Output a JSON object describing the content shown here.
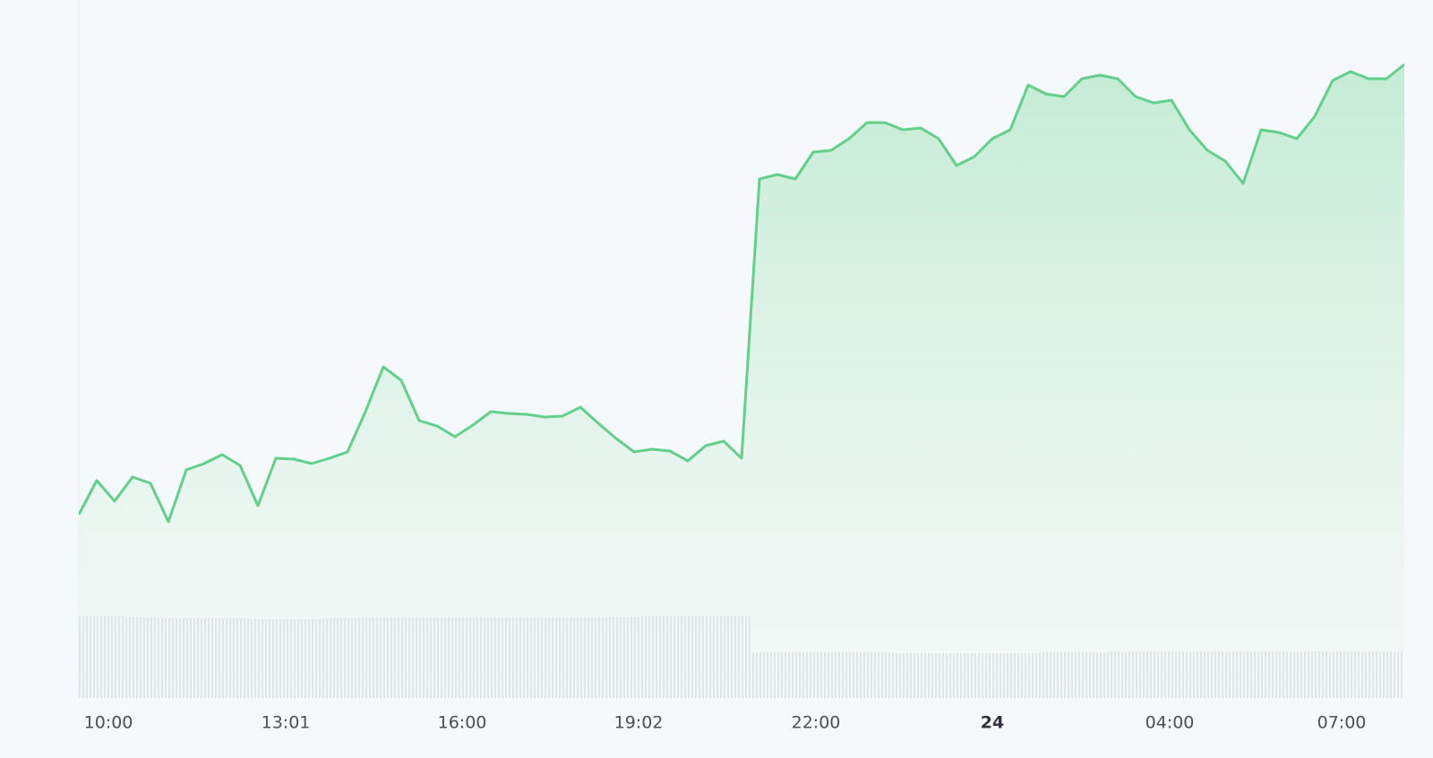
{
  "chart_data": {
    "type": "line",
    "xlim": [
      0,
      74
    ],
    "xticks": [
      {
        "value": 1.65,
        "label": "10:00"
      },
      {
        "value": 11.55,
        "label": "13:01"
      },
      {
        "value": 21.4,
        "label": "16:00"
      },
      {
        "value": 31.25,
        "label": "19:02"
      },
      {
        "value": 41.15,
        "label": "22:00"
      },
      {
        "value": 51,
        "label": "24"
      },
      {
        "value": 60.9,
        "label": "04:00"
      },
      {
        "value": 70.5,
        "label": "07:00"
      }
    ],
    "ylim": [
      0,
      780
    ],
    "y2lim": [
      0,
      100
    ],
    "series": [
      {
        "color": "#62d08b",
        "values": [
          205,
          243,
          220,
          247,
          240,
          197,
          255,
          262,
          272,
          260,
          215,
          268,
          267,
          262,
          268,
          275,
          320,
          370,
          355,
          310,
          304,
          292,
          305,
          320,
          318,
          317,
          314,
          315,
          325,
          307,
          290,
          275,
          278,
          276,
          265,
          282,
          287,
          268,
          580,
          585,
          580,
          610,
          612,
          625,
          643,
          643,
          635,
          637,
          625,
          595,
          605,
          625,
          635,
          685,
          675,
          672,
          692,
          696,
          692,
          672,
          665,
          668,
          635,
          612,
          600,
          575,
          635,
          632,
          625,
          650,
          690,
          700,
          692,
          692,
          708
        ]
      },
      {
        "type": "bar",
        "axis": "y2",
        "color": "#c3c8d4",
        "values": [
          92,
          92,
          92,
          91,
          90,
          89,
          89,
          89,
          89,
          89,
          88,
          88,
          88,
          88,
          89,
          89,
          90,
          90,
          90,
          90,
          90,
          90,
          90,
          90,
          90,
          90,
          90,
          90,
          90,
          90,
          91,
          91,
          92,
          92,
          92,
          92,
          92,
          92,
          51,
          51,
          51,
          51,
          51,
          51,
          51,
          51,
          50,
          50,
          50,
          50,
          50,
          50,
          50,
          50,
          51,
          51,
          51,
          51,
          52,
          52,
          52,
          52,
          52,
          52,
          52,
          52,
          52,
          52,
          52,
          52,
          52,
          52,
          52,
          52,
          52
        ]
      }
    ]
  }
}
